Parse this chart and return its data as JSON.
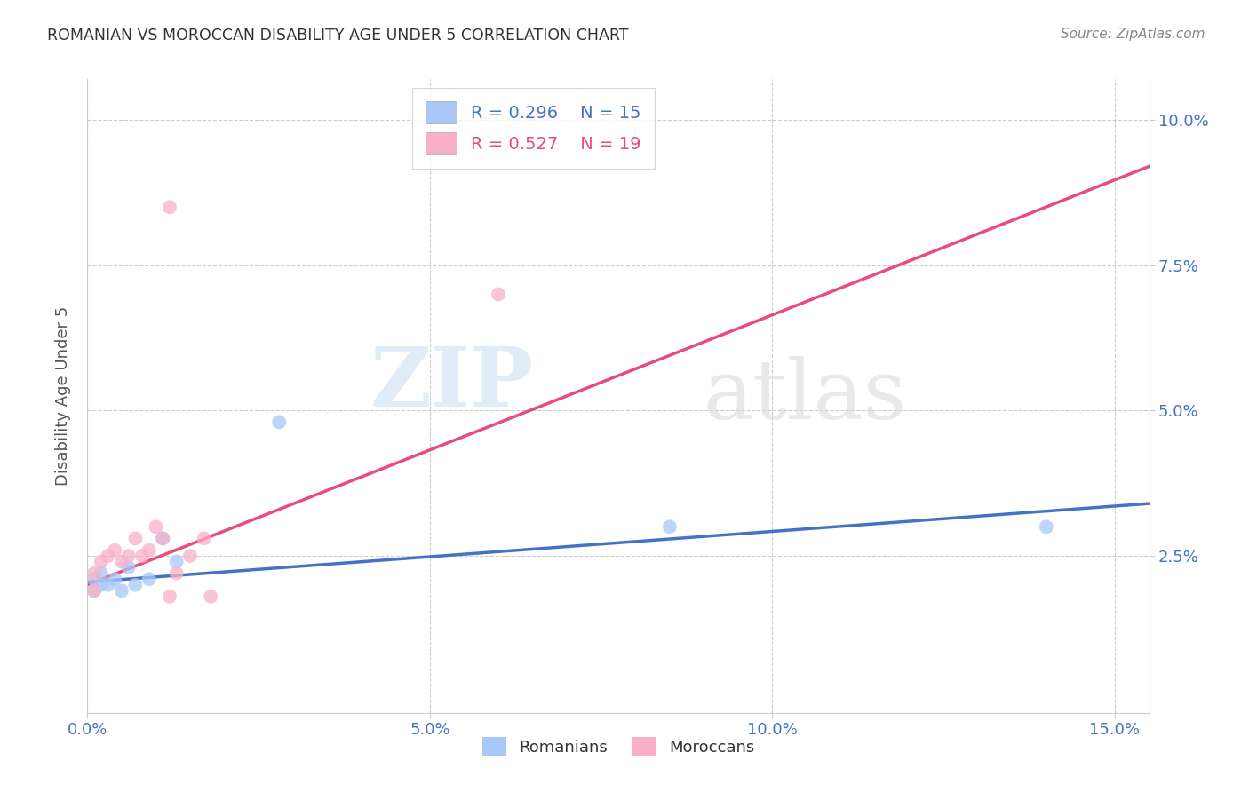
{
  "title": "ROMANIAN VS MOROCCAN DISABILITY AGE UNDER 5 CORRELATION CHART",
  "source": "Source: ZipAtlas.com",
  "xlim": [
    0.0,
    0.155
  ],
  "ylim": [
    -0.002,
    0.107
  ],
  "ylabel": "Disability Age Under 5",
  "romanian_color": "#a8c8f8",
  "moroccan_color": "#f8b0c8",
  "romanian_line_color": "#4472c4",
  "moroccan_line_color": "#e84c7d",
  "legend_r_romanian": "R = 0.296",
  "legend_n_romanian": "N = 15",
  "legend_r_moroccan": "R = 0.527",
  "legend_n_moroccan": "N = 19",
  "watermark_zip": "ZIP",
  "watermark_atlas": "atlas",
  "dot_size": 130,
  "ytick_positions": [
    0.025,
    0.05,
    0.075,
    0.1
  ],
  "ytick_labels": [
    "2.5%",
    "5.0%",
    "7.5%",
    "10.0%"
  ],
  "xtick_positions": [
    0.0,
    0.05,
    0.1,
    0.15
  ],
  "xtick_labels": [
    "0.0%",
    "5.0%",
    "10.0%",
    "15.0%"
  ],
  "roman_x": [
    0.001,
    0.001,
    0.002,
    0.002,
    0.003,
    0.004,
    0.005,
    0.006,
    0.007,
    0.009,
    0.011,
    0.013,
    0.028,
    0.085,
    0.14
  ],
  "roman_y": [
    0.019,
    0.021,
    0.02,
    0.022,
    0.02,
    0.021,
    0.019,
    0.023,
    0.02,
    0.021,
    0.028,
    0.024,
    0.048,
    0.03,
    0.03
  ],
  "moroc_x": [
    0.001,
    0.001,
    0.002,
    0.003,
    0.004,
    0.005,
    0.006,
    0.007,
    0.008,
    0.009,
    0.01,
    0.011,
    0.012,
    0.013,
    0.015,
    0.017,
    0.018,
    0.06,
    0.012
  ],
  "moroc_y": [
    0.019,
    0.022,
    0.024,
    0.025,
    0.026,
    0.024,
    0.025,
    0.028,
    0.025,
    0.026,
    0.03,
    0.028,
    0.018,
    0.022,
    0.025,
    0.028,
    0.018,
    0.07,
    0.085
  ],
  "roman_line_x0": 0.0,
  "roman_line_y0": 0.0205,
  "roman_line_x1": 0.155,
  "roman_line_y1": 0.034,
  "moroc_line_x0": 0.0,
  "moroc_line_y0": 0.02,
  "moroc_line_x1": 0.155,
  "moroc_line_y1": 0.092
}
